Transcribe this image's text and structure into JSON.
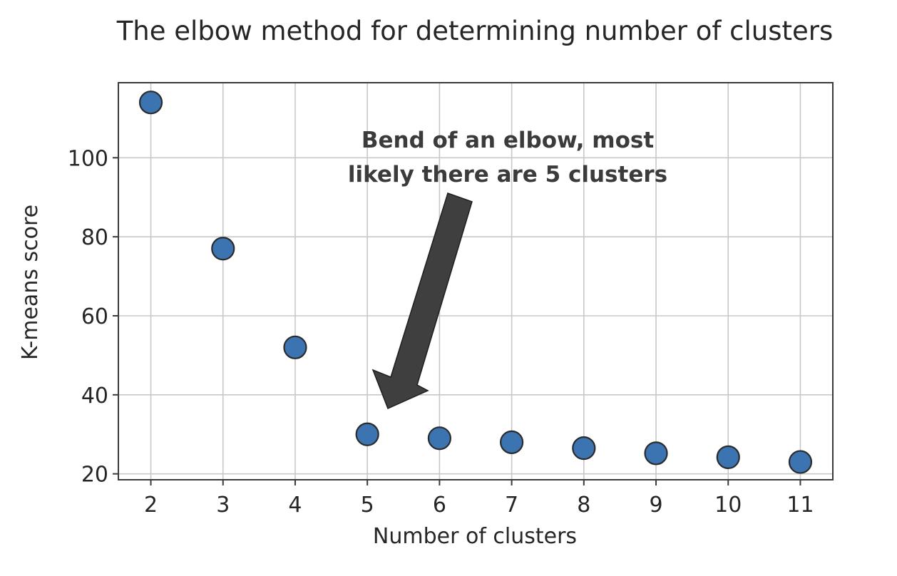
{
  "chart_data": {
    "type": "scatter",
    "title": "The elbow method for determining number of clusters",
    "xlabel": "Number of clusters",
    "ylabel": "K-means score",
    "x": [
      2,
      3,
      4,
      5,
      6,
      7,
      8,
      9,
      10,
      11
    ],
    "y": [
      114,
      77,
      52,
      30,
      29,
      28,
      26.5,
      25.2,
      24.2,
      23
    ],
    "xticks": [
      "2",
      "3",
      "4",
      "5",
      "6",
      "7",
      "8",
      "9",
      "10",
      "11"
    ],
    "yticks": [
      "20",
      "40",
      "60",
      "80",
      "100"
    ],
    "xlim": [
      1.55,
      11.45
    ],
    "ylim": [
      18.5,
      119
    ],
    "grid": true,
    "marker_color": "#3b74b1",
    "annotation": {
      "lines": [
        "Bend of an elbow, most",
        "likely there are 5 clusters"
      ],
      "target_x": 5,
      "target_y": 30
    }
  }
}
